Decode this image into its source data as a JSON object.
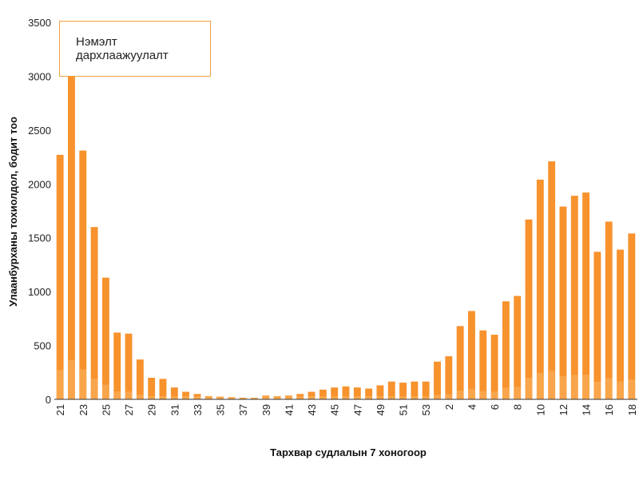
{
  "chart_data": {
    "type": "bar",
    "title": "",
    "xlabel": "Тархвар судлалын 7 хоногоор",
    "ylabel": "Улаанбурханы тохиолдол, бодит тоо",
    "ylim": [
      0,
      3500
    ],
    "yticks": [
      0,
      500,
      1000,
      1500,
      2000,
      2500,
      3000,
      3500
    ],
    "annotation": "Нэмэлт дархлаажуулалт",
    "categories": [
      "21",
      "22",
      "23",
      "24",
      "25",
      "26",
      "27",
      "28",
      "29",
      "30",
      "31",
      "32",
      "33",
      "34",
      "35",
      "36",
      "37",
      "38",
      "39",
      "40",
      "41",
      "42",
      "43",
      "44",
      "45",
      "46",
      "47",
      "48",
      "49",
      "50",
      "51",
      "52",
      "53",
      "1",
      "2",
      "3",
      "4",
      "5",
      "6",
      "7",
      "8",
      "9",
      "10",
      "11",
      "12",
      "13",
      "14",
      "15",
      "16",
      "17",
      "18"
    ],
    "xtick_labels": [
      "21",
      "",
      "23",
      "",
      "25",
      "",
      "27",
      "",
      "29",
      "",
      "31",
      "",
      "33",
      "",
      "35",
      "",
      "37",
      "",
      "39",
      "",
      "41",
      "",
      "43",
      "",
      "45",
      "",
      "47",
      "",
      "49",
      "",
      "51",
      "",
      "53",
      "",
      "2",
      "",
      "4",
      "",
      "6",
      "",
      "8",
      "",
      "10",
      "",
      "12",
      "",
      "14",
      "",
      "16",
      "",
      "18"
    ],
    "values": [
      2270,
      3050,
      2310,
      1600,
      1130,
      620,
      610,
      370,
      200,
      190,
      110,
      70,
      50,
      30,
      25,
      20,
      15,
      15,
      35,
      30,
      35,
      50,
      70,
      90,
      110,
      120,
      110,
      100,
      130,
      165,
      155,
      165,
      165,
      350,
      400,
      680,
      820,
      640,
      600,
      910,
      960,
      1670,
      2040,
      2210,
      1790,
      1890,
      1920,
      1370,
      1650,
      1390,
      1540
    ],
    "colors": {
      "bar": "#f7922d",
      "bar_inner": "#e8822a",
      "bar_light": "#fbb565",
      "axis": "#333333",
      "legend_border": "#f0a040"
    }
  }
}
